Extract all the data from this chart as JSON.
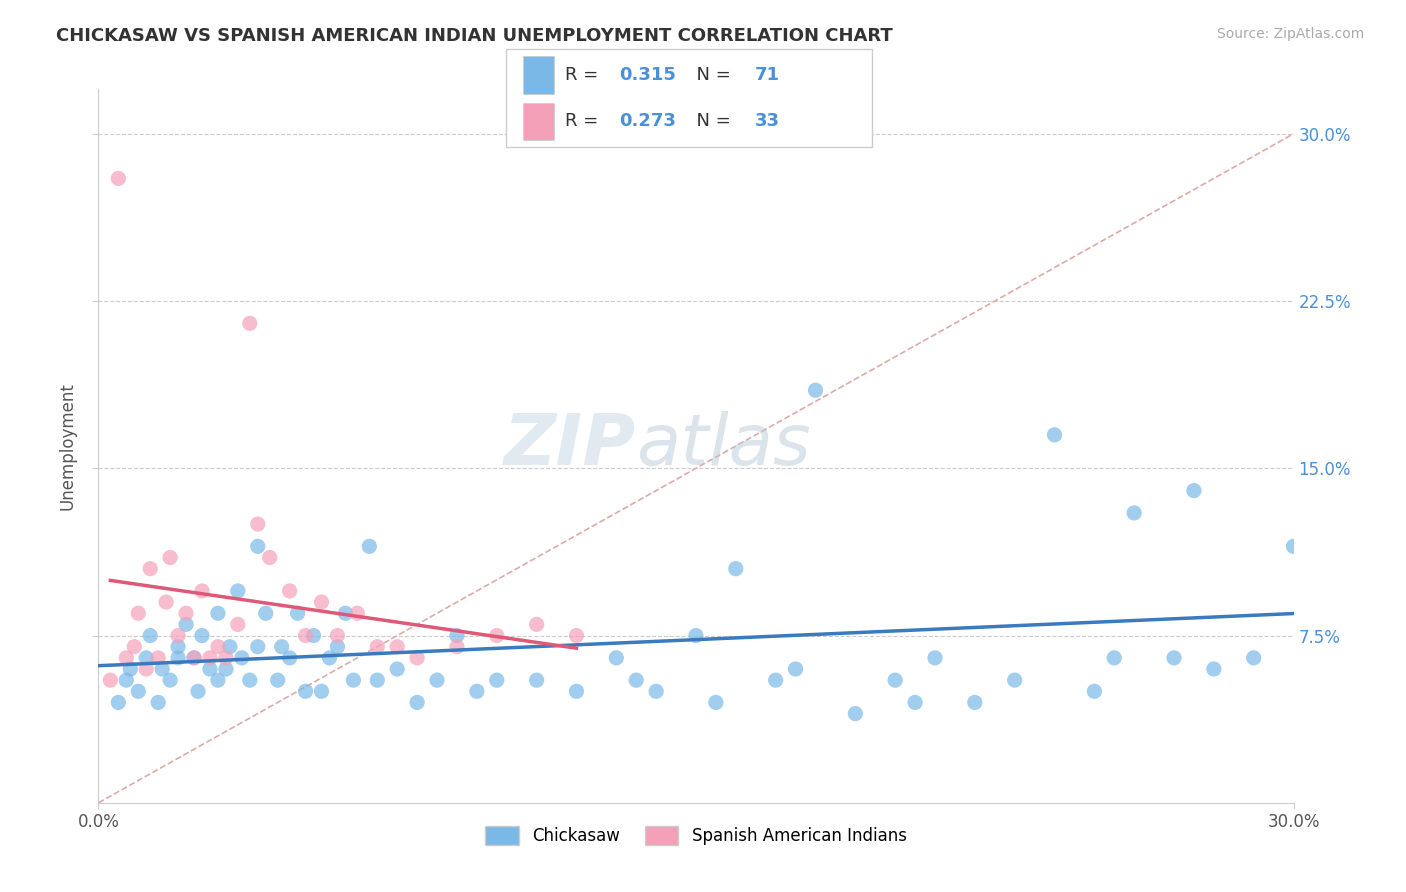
{
  "title": "CHICKASAW VS SPANISH AMERICAN INDIAN UNEMPLOYMENT CORRELATION CHART",
  "source": "Source: ZipAtlas.com",
  "ylabel_label": "Unemployment",
  "chickasaw_R": 0.315,
  "chickasaw_N": 71,
  "spanish_R": 0.273,
  "spanish_N": 33,
  "chickasaw_color": "#7ab8e8",
  "spanish_color": "#f4a0b8",
  "chickasaw_line_color": "#3a7abf",
  "spanish_line_color": "#e05878",
  "ref_line_color": "#ddaaaa",
  "background_color": "#ffffff",
  "grid_color": "#cccccc",
  "xmin": 0.0,
  "xmax": 30.0,
  "ymin": 0.0,
  "ymax": 32.0,
  "chickasaw_x": [
    0.5,
    0.7,
    0.8,
    1.0,
    1.2,
    1.3,
    1.5,
    1.6,
    1.8,
    2.0,
    2.0,
    2.2,
    2.4,
    2.5,
    2.6,
    2.8,
    3.0,
    3.0,
    3.2,
    3.3,
    3.5,
    3.6,
    3.8,
    4.0,
    4.0,
    4.2,
    4.5,
    4.6,
    4.8,
    5.0,
    5.2,
    5.4,
    5.6,
    5.8,
    6.0,
    6.2,
    6.4,
    6.8,
    7.0,
    7.5,
    8.0,
    8.5,
    9.0,
    9.5,
    10.0,
    11.0,
    12.0,
    13.0,
    13.5,
    14.0,
    15.0,
    15.5,
    16.0,
    17.0,
    17.5,
    18.0,
    19.0,
    20.0,
    20.5,
    21.0,
    22.0,
    23.0,
    24.0,
    25.0,
    25.5,
    26.0,
    27.0,
    27.5,
    28.0,
    29.0,
    30.0
  ],
  "chickasaw_y": [
    4.5,
    5.5,
    6.0,
    5.0,
    6.5,
    7.5,
    4.5,
    6.0,
    5.5,
    6.5,
    7.0,
    8.0,
    6.5,
    5.0,
    7.5,
    6.0,
    5.5,
    8.5,
    6.0,
    7.0,
    9.5,
    6.5,
    5.5,
    7.0,
    11.5,
    8.5,
    5.5,
    7.0,
    6.5,
    8.5,
    5.0,
    7.5,
    5.0,
    6.5,
    7.0,
    8.5,
    5.5,
    11.5,
    5.5,
    6.0,
    4.5,
    5.5,
    7.5,
    5.0,
    5.5,
    5.5,
    5.0,
    6.5,
    5.5,
    5.0,
    7.5,
    4.5,
    10.5,
    5.5,
    6.0,
    18.5,
    4.0,
    5.5,
    4.5,
    6.5,
    4.5,
    5.5,
    16.5,
    5.0,
    6.5,
    13.0,
    6.5,
    14.0,
    6.0,
    6.5,
    11.5
  ],
  "spanish_x": [
    0.3,
    0.5,
    0.7,
    0.9,
    1.0,
    1.2,
    1.3,
    1.5,
    1.7,
    1.8,
    2.0,
    2.2,
    2.4,
    2.6,
    2.8,
    3.0,
    3.2,
    3.5,
    3.8,
    4.0,
    4.3,
    4.8,
    5.2,
    5.6,
    6.0,
    6.5,
    7.0,
    7.5,
    8.0,
    9.0,
    10.0,
    11.0,
    12.0
  ],
  "spanish_y": [
    5.5,
    28.0,
    6.5,
    7.0,
    8.5,
    6.0,
    10.5,
    6.5,
    9.0,
    11.0,
    7.5,
    8.5,
    6.5,
    9.5,
    6.5,
    7.0,
    6.5,
    8.0,
    21.5,
    12.5,
    11.0,
    9.5,
    7.5,
    9.0,
    7.5,
    8.5,
    7.0,
    7.0,
    6.5,
    7.0,
    7.5,
    8.0,
    7.5
  ],
  "legend_label_1": "Chickasaw",
  "legend_label_2": "Spanish American Indians"
}
